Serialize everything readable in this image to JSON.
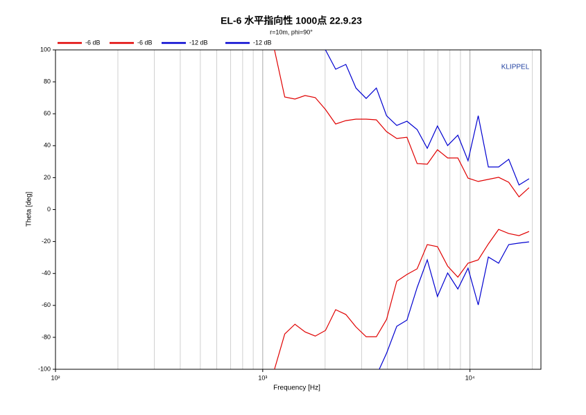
{
  "chart_data": {
    "type": "line",
    "title": "EL-6 水平指向性 1000点 22.9.23",
    "subtitle": "r=10m, phi=90°",
    "annotation": "KLIPPEL",
    "x_label": "Frequency [Hz]",
    "y_label": "Theta [deg]",
    "log_x": true,
    "grid": true,
    "xlim": [
      100,
      22000
    ],
    "ylim": [
      -100,
      100
    ],
    "xticks": [
      {
        "value": 100,
        "label": "10²"
      },
      {
        "value": 1000,
        "label": "10³"
      },
      {
        "value": 10000,
        "label": "10⁴"
      }
    ],
    "yticks": [
      -100,
      -80,
      -60,
      -40,
      -20,
      0,
      20,
      40,
      60,
      80,
      100
    ],
    "x": [
      1140,
      1277,
      1430,
      1601,
      1793,
      2008,
      2248,
      2518,
      2819,
      3157,
      3535,
      3958,
      4433,
      4964,
      5559,
      6224,
      6970,
      7805,
      8740,
      9788,
      10960,
      12270,
      13745,
      15390,
      17240,
      19290
    ],
    "series": [
      {
        "name": "-6 dB",
        "color": "#e00000",
        "values": [
          100,
          70.5,
          69.2,
          71.4,
          70.1,
          62.7,
          53.6,
          55.7,
          56.6,
          56.6,
          56.2,
          48.8,
          44.5,
          45.3,
          28.8,
          28.4,
          37.5,
          32.3,
          32.3,
          19.7,
          17.6,
          18.9,
          20.2,
          17.1,
          8.0,
          13.7
        ]
      },
      {
        "name": "-6 dB",
        "color": "#e00000",
        "values": [
          -100,
          -77.9,
          -71.8,
          -76.6,
          -79.2,
          -75.7,
          -62.7,
          -65.7,
          -73.5,
          -79.6,
          -79.6,
          -68.8,
          -44.9,
          -40.6,
          -37.1,
          -21.9,
          -23.2,
          -35.4,
          -42.3,
          -33.6,
          -31.5,
          -21.5,
          -12.4,
          -15.0,
          -16.3,
          -13.7
        ]
      },
      {
        "name": "-12 dB",
        "color": "#0000d0",
        "values": [
          null,
          null,
          null,
          null,
          null,
          100,
          87.9,
          90.9,
          76.1,
          69.6,
          76.1,
          58.8,
          52.7,
          55.3,
          50.1,
          38.4,
          52.3,
          40.1,
          46.6,
          30.6,
          58.8,
          26.7,
          26.7,
          31.5,
          15.4,
          19.3
        ]
      },
      {
        "name": "-12 dB",
        "color": "#0000d0",
        "values": [
          null,
          null,
          null,
          null,
          null,
          null,
          null,
          null,
          null,
          null,
          -104,
          -90.0,
          -73.1,
          -69.2,
          -48.8,
          -31.5,
          -54.4,
          -39.7,
          -49.7,
          -36.7,
          -59.7,
          -29.7,
          -33.6,
          -21.9,
          -21.0,
          -20.2
        ]
      }
    ]
  }
}
